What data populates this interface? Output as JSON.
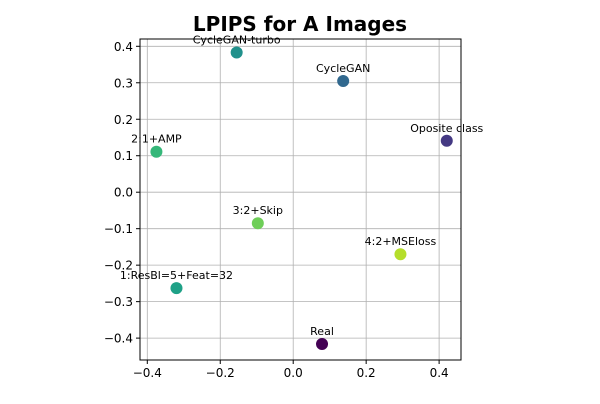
{
  "chart_data": {
    "type": "scatter",
    "title": "LPIPS for A Images",
    "xlabel": "",
    "ylabel": "",
    "xlim": [
      -0.42,
      0.46
    ],
    "ylim": [
      -0.46,
      0.42
    ],
    "grid": true,
    "x_ticks": [
      -0.4,
      -0.2,
      0.0,
      0.2,
      0.4
    ],
    "x_tick_labels": [
      "−0.4",
      "−0.2",
      "0.0",
      "0.2",
      "0.4"
    ],
    "y_ticks": [
      -0.4,
      -0.3,
      -0.2,
      -0.1,
      0.0,
      0.1,
      0.2,
      0.3,
      0.4
    ],
    "y_tick_labels": [
      "−0.4",
      "−0.3",
      "−0.2",
      "−0.1",
      "0.0",
      "0.1",
      "0.2",
      "0.3",
      "0.4"
    ],
    "points": [
      {
        "label": "CycleGAN-turbo",
        "x": -0.155,
        "y": 0.383,
        "color": "#21918c"
      },
      {
        "label": "CycleGAN",
        "x": 0.137,
        "y": 0.305,
        "color": "#31688e"
      },
      {
        "label": "Oposite class",
        "x": 0.421,
        "y": 0.141,
        "color": "#443983"
      },
      {
        "label": "2:1+AMP",
        "x": -0.375,
        "y": 0.111,
        "color": "#35b779"
      },
      {
        "label": "3:2+Skip",
        "x": -0.097,
        "y": -0.085,
        "color": "#6ece58"
      },
      {
        "label": "4:2+MSEloss",
        "x": 0.294,
        "y": -0.17,
        "color": "#b5de2b"
      },
      {
        "label": "1:ResBl=5+Feat=32",
        "x": -0.32,
        "y": -0.263,
        "color": "#1fa187"
      },
      {
        "label": "Real",
        "x": 0.079,
        "y": -0.416,
        "color": "#440154"
      }
    ]
  }
}
